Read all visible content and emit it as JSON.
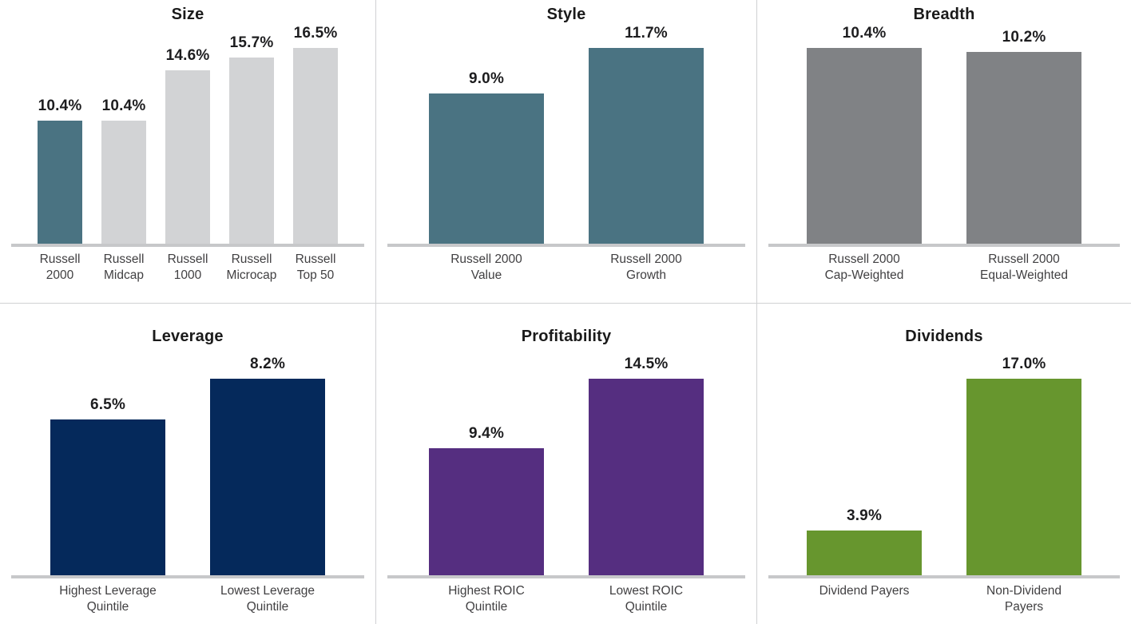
{
  "page": {
    "background": "#ffffff",
    "divider_color": "#d0d1d3",
    "axis_color": "#c7c8ca",
    "title_color": "#1a1a1a",
    "value_label_color": "#1d1d1f",
    "category_label_color": "#414042"
  },
  "chart_data": [
    {
      "type": "bar",
      "title": "Size",
      "categories": [
        "Russell\n2000",
        "Russell\nMidcap",
        "Russell\n1000",
        "Russell\nMicrocap",
        "Russell\nTop 50"
      ],
      "values": [
        10.4,
        10.4,
        14.6,
        15.7,
        16.5
      ],
      "value_labels": [
        "10.4%",
        "10.4%",
        "14.6%",
        "15.7%",
        "16.5%"
      ],
      "bar_colors": [
        "#4a7382",
        "#d2d3d5",
        "#d2d3d5",
        "#d2d3d5",
        "#d2d3d5"
      ],
      "xlabel": "",
      "ylabel": "",
      "grid": false,
      "legend": "none",
      "data_labels": "above-bars"
    },
    {
      "type": "bar",
      "title": "Style",
      "categories": [
        "Russell 2000\nValue",
        "Russell 2000\nGrowth"
      ],
      "values": [
        9.0,
        11.7
      ],
      "value_labels": [
        "9.0%",
        "11.7%"
      ],
      "bar_colors": [
        "#4a7382",
        "#4a7382"
      ],
      "xlabel": "",
      "ylabel": "",
      "grid": false,
      "legend": "none",
      "data_labels": "above-bars"
    },
    {
      "type": "bar",
      "title": "Breadth",
      "categories": [
        "Russell 2000\nCap-Weighted",
        "Russell 2000\nEqual-Weighted"
      ],
      "values": [
        10.4,
        10.2
      ],
      "value_labels": [
        "10.4%",
        "10.2%"
      ],
      "bar_colors": [
        "#808285",
        "#808285"
      ],
      "xlabel": "",
      "ylabel": "",
      "grid": false,
      "legend": "none",
      "data_labels": "above-bars"
    },
    {
      "type": "bar",
      "title": "Leverage",
      "categories": [
        "Highest Leverage\nQuintile",
        "Lowest Leverage\nQuintile"
      ],
      "values": [
        6.5,
        8.2
      ],
      "value_labels": [
        "6.5%",
        "8.2%"
      ],
      "bar_colors": [
        "#05295b",
        "#05295b"
      ],
      "xlabel": "",
      "ylabel": "",
      "grid": false,
      "legend": "none",
      "data_labels": "above-bars"
    },
    {
      "type": "bar",
      "title": "Profitability",
      "categories": [
        "Highest ROIC\nQuintile",
        "Lowest ROIC\nQuintile"
      ],
      "values": [
        9.4,
        14.5
      ],
      "value_labels": [
        "9.4%",
        "14.5%"
      ],
      "bar_colors": [
        "#552e80",
        "#552e80"
      ],
      "xlabel": "",
      "ylabel": "",
      "grid": false,
      "legend": "none",
      "data_labels": "above-bars"
    },
    {
      "type": "bar",
      "title": "Dividends",
      "categories": [
        "Dividend Payers",
        "Non-Dividend\nPayers"
      ],
      "values": [
        3.9,
        17.0
      ],
      "value_labels": [
        "3.9%",
        "17.0%"
      ],
      "bar_colors": [
        "#67962e",
        "#67962e"
      ],
      "xlabel": "",
      "ylabel": "",
      "grid": false,
      "legend": "none",
      "data_labels": "above-bars"
    }
  ]
}
